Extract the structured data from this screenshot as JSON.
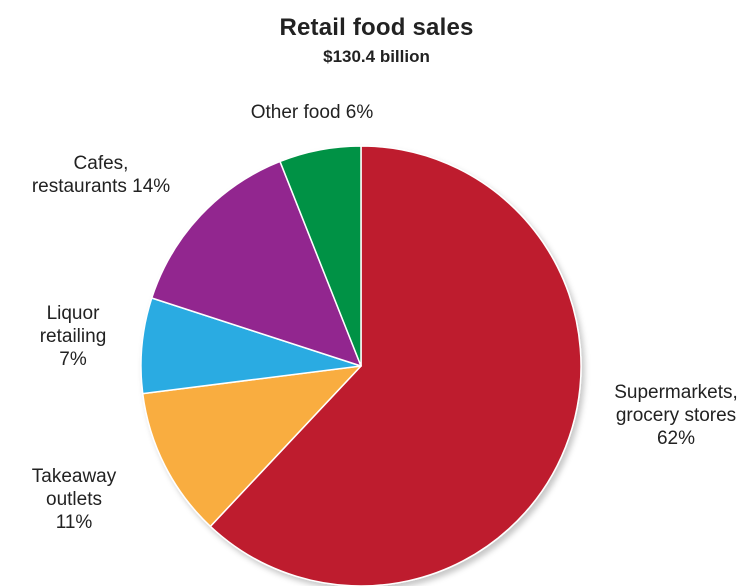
{
  "chart_data": {
    "type": "pie",
    "title": "Retail food sales",
    "subtitle": "$130.4 billion",
    "slices": [
      {
        "label_lines": [
          "Supermarkets,",
          "grocery stores",
          "62%"
        ],
        "value": 62,
        "color": "#be1e2d"
      },
      {
        "label_lines": [
          "Takeaway",
          "outlets",
          "11%"
        ],
        "value": 11,
        "color": "#f9ad40"
      },
      {
        "label_lines": [
          "Liquor",
          "retailing",
          "7%"
        ],
        "value": 7,
        "color": "#29abe2"
      },
      {
        "label_lines": [
          "Cafes,",
          "restaurants 14%"
        ],
        "value": 14,
        "color": "#92278f"
      },
      {
        "label_lines": [
          "Other food 6%"
        ],
        "value": 6,
        "color": "#009245"
      }
    ],
    "legend": "none",
    "grid": false
  }
}
